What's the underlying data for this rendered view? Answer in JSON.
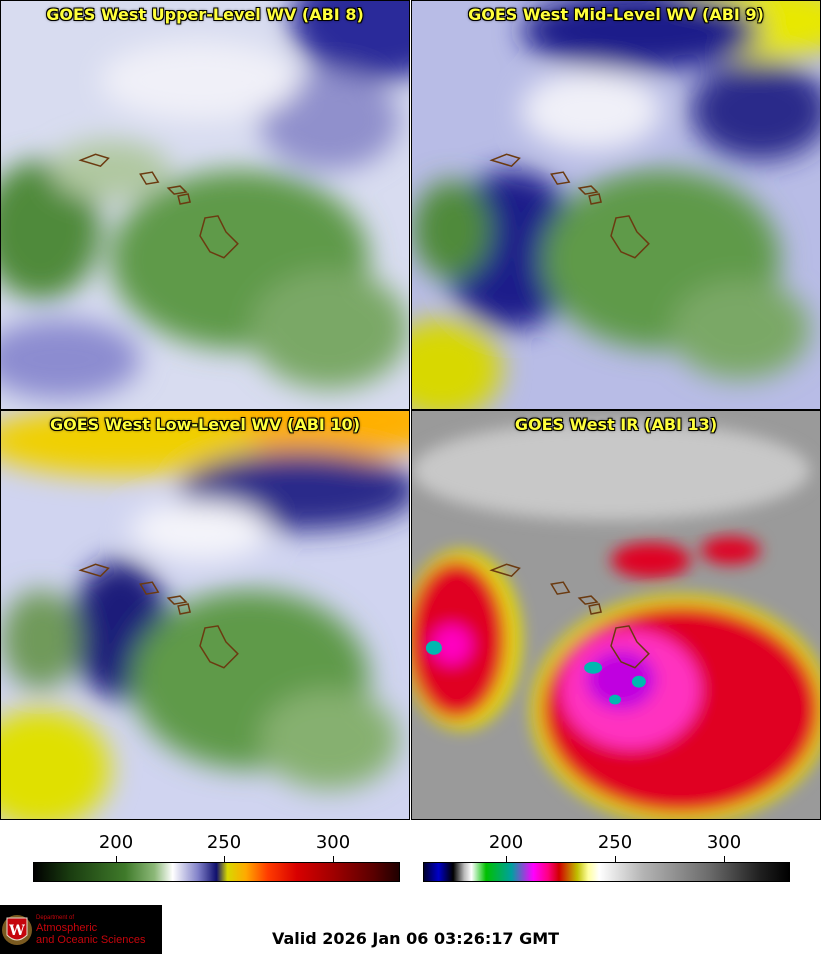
{
  "panels": [
    {
      "title": "GOES West Upper-Level WV (ABI 8)"
    },
    {
      "title": "GOES West Mid-Level WV (ABI 9)"
    },
    {
      "title": "GOES West Low-Level WV (ABI 10)"
    },
    {
      "title": "GOES West IR (ABI 13)"
    }
  ],
  "colorbars": [
    {
      "ticks": [
        "200",
        "250",
        "300"
      ]
    },
    {
      "ticks": [
        "200",
        "250",
        "300"
      ]
    }
  ],
  "footer": {
    "valid_time": "Valid 2026 Jan 06 03:26:17 GMT",
    "logo": {
      "dept": "Department of",
      "line1": "Atmospheric",
      "line2": "and Oceanic Sciences",
      "emblem": "W"
    }
  }
}
